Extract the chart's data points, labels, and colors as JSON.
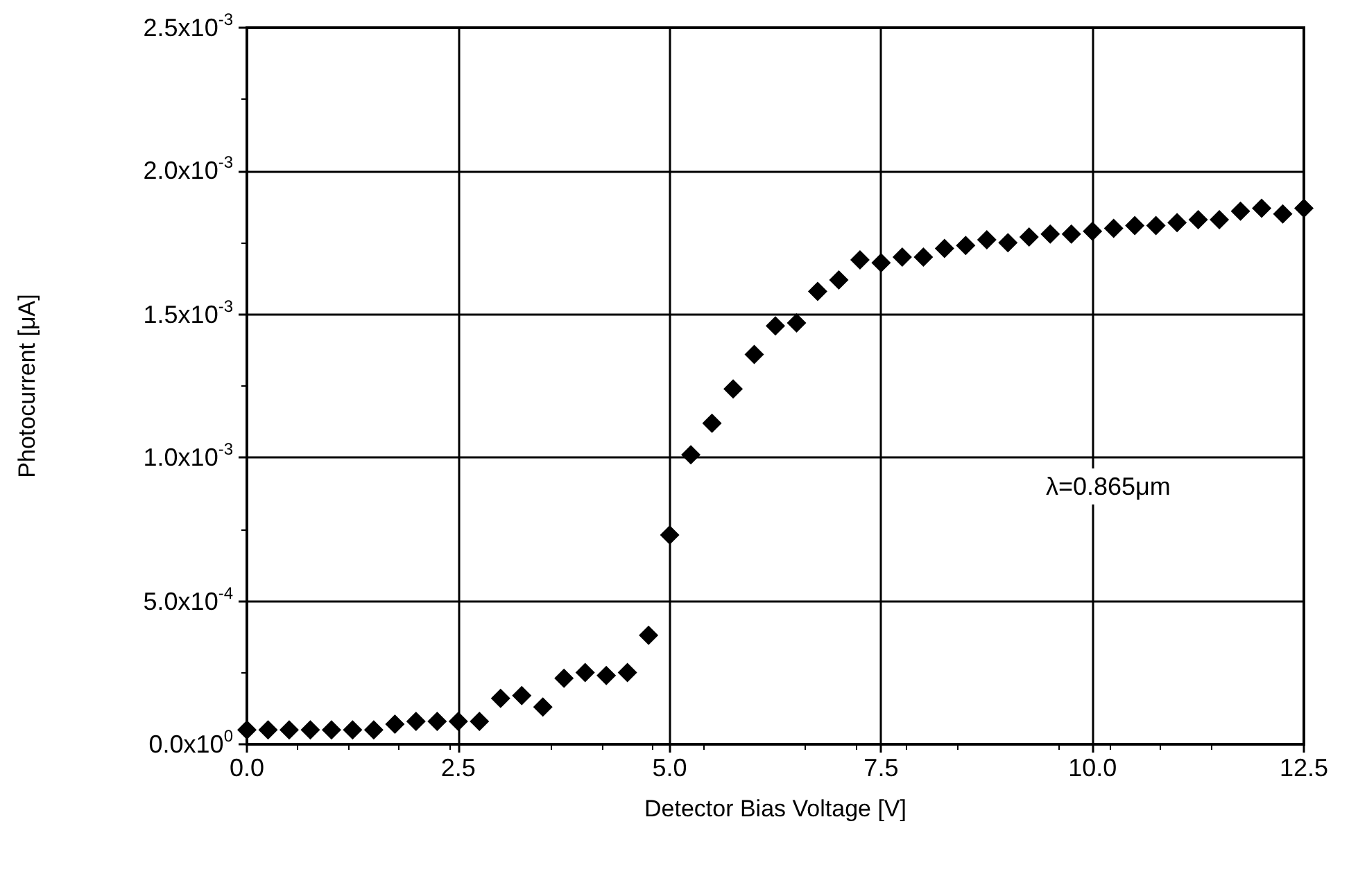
{
  "chart_data": {
    "type": "scatter",
    "xlabel": "Detector Bias Voltage [V]",
    "ylabel": "Photocurrent [μA]",
    "x": [
      0,
      0.25,
      0.5,
      0.75,
      1,
      1.25,
      1.5,
      1.75,
      2,
      2.25,
      2.5,
      2.75,
      3,
      3.25,
      3.5,
      3.75,
      4,
      4.25,
      4.5,
      4.75,
      5,
      5.25,
      5.5,
      5.75,
      6,
      6.25,
      6.5,
      6.75,
      7,
      7.25,
      7.5,
      7.75,
      8,
      8.25,
      8.5,
      8.75,
      9,
      9.25,
      9.5,
      9.75,
      10,
      10.25,
      10.5,
      10.75,
      11,
      11.25,
      11.5,
      11.75,
      12,
      12.25,
      12.5
    ],
    "series": [
      {
        "color": "#000000",
        "values": [
          5e-05,
          5e-05,
          5e-05,
          5e-05,
          5e-05,
          5e-05,
          5e-05,
          7e-05,
          8e-05,
          8e-05,
          8e-05,
          8e-05,
          0.00016,
          0.00017,
          0.00013,
          0.00023,
          0.00025,
          0.00024,
          0.00025,
          0.00038,
          0.00073,
          0.00101,
          0.00112,
          0.00124,
          0.00136,
          0.00146,
          0.00147,
          0.00158,
          0.00162,
          0.00169,
          0.00168,
          0.0017,
          0.0017,
          0.00173,
          0.00174,
          0.00176,
          0.00175,
          0.00177,
          0.00178,
          0.00178,
          0.00179,
          0.0018,
          0.00181,
          0.00181,
          0.00182,
          0.00183,
          0.00183,
          0.00186,
          0.00187,
          0.00185,
          0.00187
        ]
      }
    ],
    "xlim": [
      0,
      12.5
    ],
    "xticks": [
      {
        "value": 0,
        "label": "0.0"
      },
      {
        "value": 2.5,
        "label": "2.5"
      },
      {
        "value": 5,
        "label": "5.0"
      },
      {
        "value": 7.5,
        "label": "7.5"
      },
      {
        "value": 10,
        "label": "10.0"
      },
      {
        "value": 12.5,
        "label": "12.5"
      }
    ],
    "ylim": [
      0,
      0.0025
    ],
    "yticks": [
      {
        "value": 0,
        "label": "0.0x10$^{0}$"
      },
      {
        "value": 0.0005,
        "label": "5.0x10$^{-4}$"
      },
      {
        "value": 0.001,
        "label": "1.0x10$^{-3}$"
      },
      {
        "value": 0.0015,
        "label": "1.5x10$^{-3}$"
      },
      {
        "value": 0.002,
        "label": "2.0x10$^{-3}$"
      },
      {
        "value": 0.0025,
        "label": "2.5x10$^{-3}$"
      }
    ],
    "annotations": [
      "λ=0.865μm"
    ],
    "grid": true,
    "marker": "diamond"
  }
}
